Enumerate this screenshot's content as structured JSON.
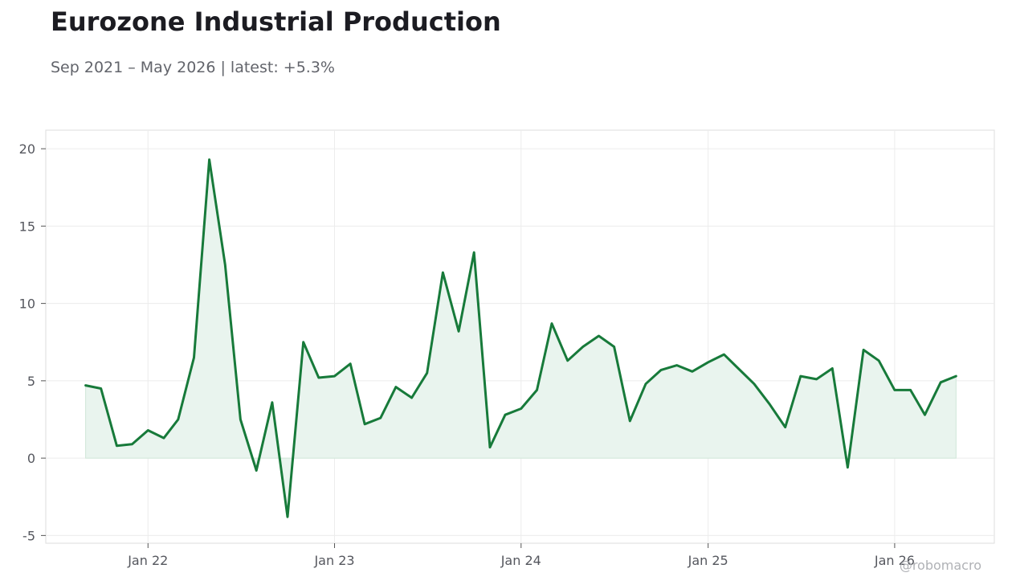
{
  "title": "Eurozone Industrial Production",
  "subtitle": "Sep 2021 – May 2026 | latest: +5.3%",
  "watermark": "@robomacro",
  "colors": {
    "line": "#177a3a",
    "fill": "#e9f4ee",
    "grid": "#ececec",
    "frame": "#dddddd"
  },
  "chart_data": {
    "type": "area",
    "title": "Eurozone Industrial Production",
    "subtitle": "Sep 2021 – May 2026 | latest: +5.3%",
    "xlabel": "",
    "ylabel": "",
    "ylim": [
      -5.5,
      21.2
    ],
    "xlim": [
      "2021-06-15",
      "2026-07-15"
    ],
    "grid": true,
    "legend": "none",
    "y_ticks": [
      -5,
      0,
      5,
      10,
      15,
      20
    ],
    "y_tick_labels": [
      "-5",
      "0",
      "5",
      "10",
      "15",
      "20"
    ],
    "x_ticks": [
      "2022-01-01",
      "2023-01-01",
      "2024-01-01",
      "2025-01-01",
      "2026-01-01"
    ],
    "x_tick_labels": [
      "Jan 22",
      "Jan 23",
      "Jan 24",
      "Jan 25",
      "Jan 26"
    ],
    "x": [
      "2021-09",
      "2021-10",
      "2021-11",
      "2021-12",
      "2022-01",
      "2022-02",
      "2022-03",
      "2022-04",
      "2022-05",
      "2022-06",
      "2022-07",
      "2022-08",
      "2022-09",
      "2022-10",
      "2022-11",
      "2022-12",
      "2023-01",
      "2023-02",
      "2023-03",
      "2023-04",
      "2023-05",
      "2023-06",
      "2023-07",
      "2023-08",
      "2023-09",
      "2023-10",
      "2023-11",
      "2023-12",
      "2024-01",
      "2024-02",
      "2024-03",
      "2024-04",
      "2024-05",
      "2024-06",
      "2024-07",
      "2024-08",
      "2024-09",
      "2024-10",
      "2024-11",
      "2024-12",
      "2025-01",
      "2025-02",
      "2025-03",
      "2025-04",
      "2025-05",
      "2025-06",
      "2025-07",
      "2025-08",
      "2025-09",
      "2025-10",
      "2025-11",
      "2025-12",
      "2026-01",
      "2026-02",
      "2026-03",
      "2026-04",
      "2026-05"
    ],
    "series": [
      {
        "values": [
          4.7,
          4.5,
          0.8,
          0.9,
          1.8,
          1.3,
          2.5,
          6.5,
          19.3,
          12.5,
          2.5,
          -0.8,
          3.6,
          -3.8,
          7.5,
          5.2,
          5.3,
          6.1,
          2.2,
          2.6,
          4.6,
          3.9,
          5.5,
          12.0,
          8.2,
          13.3,
          0.7,
          2.8,
          3.2,
          4.4,
          8.7,
          6.3,
          7.2,
          7.9,
          7.2,
          2.4,
          4.8,
          5.7,
          6.0,
          5.6,
          6.2,
          6.7,
          5.8,
          4.8,
          3.5,
          2.0,
          5.3,
          5.1,
          5.8,
          -0.6,
          7.0,
          6.3,
          4.4,
          4.4,
          2.8,
          4.9,
          5.3
        ]
      }
    ]
  }
}
